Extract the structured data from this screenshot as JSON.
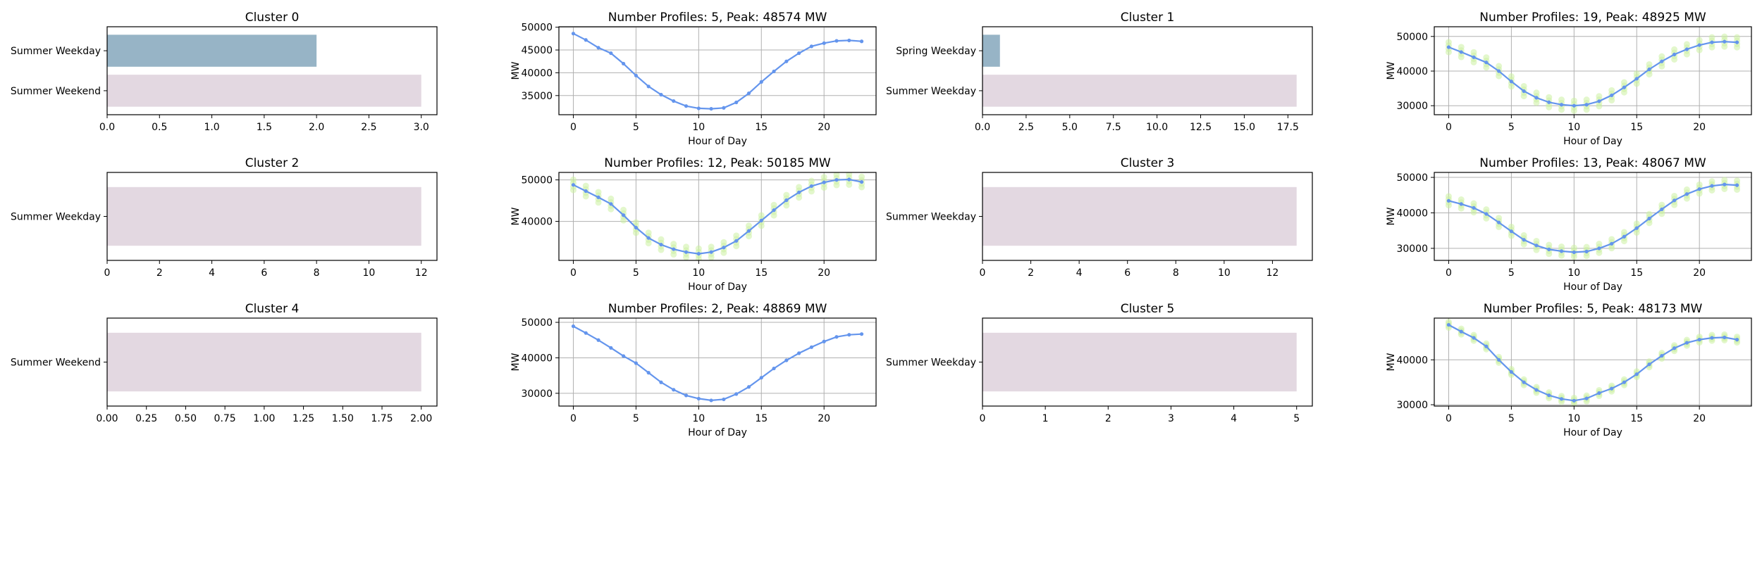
{
  "colors": {
    "bar_blue": "#97b4c6",
    "bar_pink": "#e3d8e1",
    "line": "#6495ed",
    "marker": "#6495ed",
    "profile_dots": "#ccf0a3",
    "grid": "#b0b0b0"
  },
  "chart_data": [
    {
      "type": "bar",
      "orientation": "horizontal",
      "title": "Cluster 0",
      "categories": [
        "Summer Weekday",
        "Summer Weekend"
      ],
      "values": [
        2,
        3
      ],
      "bar_colors": [
        "bar_blue",
        "bar_pink"
      ],
      "xlim": [
        0,
        3.15
      ],
      "xticks": [
        0,
        0.5,
        1.0,
        1.5,
        2.0,
        2.5,
        3.0
      ],
      "tick_decimals": 1,
      "grid": false
    },
    {
      "type": "line",
      "title": "Number Profiles: 5, Peak: 48574 MW",
      "xlabel": "Hour of Day",
      "ylabel": "MW",
      "x": [
        0,
        1,
        2,
        3,
        4,
        5,
        6,
        7,
        8,
        9,
        10,
        11,
        12,
        13,
        14,
        15,
        16,
        17,
        18,
        19,
        20,
        21,
        22,
        23
      ],
      "values": [
        48600,
        47200,
        45500,
        44300,
        42000,
        39400,
        37000,
        35200,
        33800,
        32700,
        32200,
        32100,
        32300,
        33500,
        35500,
        38000,
        40300,
        42500,
        44300,
        45800,
        46500,
        47000,
        47100,
        46900
      ],
      "ylim": [
        30800,
        50100
      ],
      "yticks": [
        35000,
        40000,
        45000,
        50000
      ],
      "xticks": [
        0,
        5,
        10,
        15,
        20
      ],
      "grid": true,
      "profile_band": 0
    },
    {
      "type": "bar",
      "orientation": "horizontal",
      "title": "Cluster 1",
      "categories": [
        "Spring Weekday",
        "Summer Weekday"
      ],
      "values": [
        1,
        18
      ],
      "bar_colors": [
        "bar_blue",
        "bar_pink"
      ],
      "xlim": [
        0,
        18.9
      ],
      "xticks": [
        0,
        2.5,
        5.0,
        7.5,
        10.0,
        12.5,
        15.0,
        17.5
      ],
      "tick_decimals": 1,
      "grid": false
    },
    {
      "type": "line",
      "title": "Number Profiles: 19, Peak: 48925 MW",
      "xlabel": "Hour of Day",
      "ylabel": "MW",
      "x": [
        0,
        1,
        2,
        3,
        4,
        5,
        6,
        7,
        8,
        9,
        10,
        11,
        12,
        13,
        14,
        15,
        16,
        17,
        18,
        19,
        20,
        21,
        22,
        23
      ],
      "values": [
        46900,
        45500,
        44000,
        42500,
        40000,
        37000,
        34200,
        32300,
        31000,
        30300,
        30000,
        30300,
        31300,
        33000,
        35300,
        37800,
        40500,
        42800,
        44800,
        46300,
        47500,
        48300,
        48500,
        48300
      ],
      "ylim": [
        27400,
        52800
      ],
      "yticks": [
        30000,
        40000,
        50000
      ],
      "xticks": [
        0,
        5,
        10,
        15,
        20
      ],
      "grid": true,
      "profile_band": 1600
    },
    {
      "type": "bar",
      "orientation": "horizontal",
      "title": "Cluster 2",
      "categories": [
        "Summer Weekday"
      ],
      "values": [
        12
      ],
      "bar_colors": [
        "bar_pink"
      ],
      "xlim": [
        0,
        12.6
      ],
      "xticks": [
        0,
        2,
        4,
        6,
        8,
        10,
        12
      ],
      "tick_decimals": 0,
      "grid": false
    },
    {
      "type": "line",
      "title": "Number Profiles: 12, Peak: 50185 MW",
      "xlabel": "Hour of Day",
      "ylabel": "MW",
      "x": [
        0,
        1,
        2,
        3,
        4,
        5,
        6,
        7,
        8,
        9,
        10,
        11,
        12,
        13,
        14,
        15,
        16,
        17,
        18,
        19,
        20,
        21,
        22,
        23
      ],
      "values": [
        48800,
        47300,
        45800,
        44200,
        41500,
        38500,
        36000,
        34400,
        33300,
        32600,
        32200,
        32600,
        33700,
        35300,
        37700,
        40200,
        42700,
        45100,
        47000,
        48500,
        49400,
        50000,
        50100,
        49500
      ],
      "ylim": [
        30600,
        51800
      ],
      "yticks": [
        40000,
        50000
      ],
      "xticks": [
        0,
        5,
        10,
        15,
        20
      ],
      "grid": true,
      "profile_band": 1400
    },
    {
      "type": "bar",
      "orientation": "horizontal",
      "title": "Cluster 3",
      "categories": [
        "Summer Weekday"
      ],
      "values": [
        13
      ],
      "bar_colors": [
        "bar_pink"
      ],
      "xlim": [
        0,
        13.65
      ],
      "xticks": [
        0,
        2,
        4,
        6,
        8,
        10,
        12
      ],
      "tick_decimals": 0,
      "grid": false
    },
    {
      "type": "line",
      "title": "Number Profiles: 13, Peak: 48067 MW",
      "xlabel": "Hour of Day",
      "ylabel": "MW",
      "x": [
        0,
        1,
        2,
        3,
        4,
        5,
        6,
        7,
        8,
        9,
        10,
        11,
        12,
        13,
        14,
        15,
        16,
        17,
        18,
        19,
        20,
        21,
        22,
        23
      ],
      "values": [
        43400,
        42500,
        41400,
        39700,
        37300,
        34800,
        32400,
        30800,
        29700,
        29200,
        28900,
        29100,
        30000,
        31300,
        33300,
        35700,
        38400,
        41000,
        43500,
        45300,
        46700,
        47600,
        48000,
        47800
      ],
      "ylim": [
        26600,
        51400
      ],
      "yticks": [
        30000,
        40000,
        50000
      ],
      "xticks": [
        0,
        5,
        10,
        15,
        20
      ],
      "grid": true,
      "profile_band": 1400
    },
    {
      "type": "bar",
      "orientation": "horizontal",
      "title": "Cluster 4",
      "categories": [
        "Summer Weekend"
      ],
      "values": [
        2
      ],
      "bar_colors": [
        "bar_pink"
      ],
      "xlim": [
        0,
        2.1
      ],
      "xticks": [
        0,
        0.25,
        0.5,
        0.75,
        1.0,
        1.25,
        1.5,
        1.75,
        2.0
      ],
      "tick_decimals": 2,
      "grid": false
    },
    {
      "type": "line",
      "title": "Number Profiles: 2, Peak: 48869 MW",
      "xlabel": "Hour of Day",
      "ylabel": "MW",
      "x": [
        0,
        1,
        2,
        3,
        4,
        5,
        6,
        7,
        8,
        9,
        10,
        11,
        12,
        13,
        14,
        15,
        16,
        17,
        18,
        19,
        20,
        21,
        22,
        23
      ],
      "values": [
        48900,
        47000,
        45000,
        42800,
        40500,
        38500,
        35800,
        33100,
        31000,
        29400,
        28500,
        28000,
        28300,
        29800,
        31800,
        34400,
        37000,
        39300,
        41300,
        43000,
        44600,
        45900,
        46500,
        46700
      ],
      "ylim": [
        26400,
        51200
      ],
      "yticks": [
        30000,
        40000,
        50000
      ],
      "xticks": [
        0,
        5,
        10,
        15,
        20
      ],
      "grid": true,
      "profile_band": 0
    },
    {
      "type": "bar",
      "orientation": "horizontal",
      "title": "Cluster 5",
      "categories": [
        "Summer Weekday"
      ],
      "values": [
        5
      ],
      "bar_colors": [
        "bar_pink"
      ],
      "xlim": [
        0,
        5.25
      ],
      "xticks": [
        0,
        1,
        2,
        3,
        4,
        5
      ],
      "tick_decimals": 0,
      "grid": false
    },
    {
      "type": "line",
      "title": "Number Profiles: 5, Peak: 48173 MW",
      "xlabel": "Hour of Day",
      "ylabel": "MW",
      "x": [
        0,
        1,
        2,
        3,
        4,
        5,
        6,
        7,
        8,
        9,
        10,
        11,
        12,
        13,
        14,
        15,
        16,
        17,
        18,
        19,
        20,
        21,
        22,
        23
      ],
      "values": [
        47800,
        46300,
        44900,
        43000,
        40000,
        37300,
        35000,
        33300,
        32100,
        31300,
        30900,
        31400,
        32600,
        33600,
        35000,
        36800,
        39000,
        40900,
        42600,
        43800,
        44500,
        44900,
        45000,
        44500
      ],
      "ylim": [
        29700,
        49300
      ],
      "yticks": [
        30000,
        40000
      ],
      "xticks": [
        0,
        5,
        10,
        15,
        20
      ],
      "grid": true,
      "profile_band": 700
    }
  ]
}
